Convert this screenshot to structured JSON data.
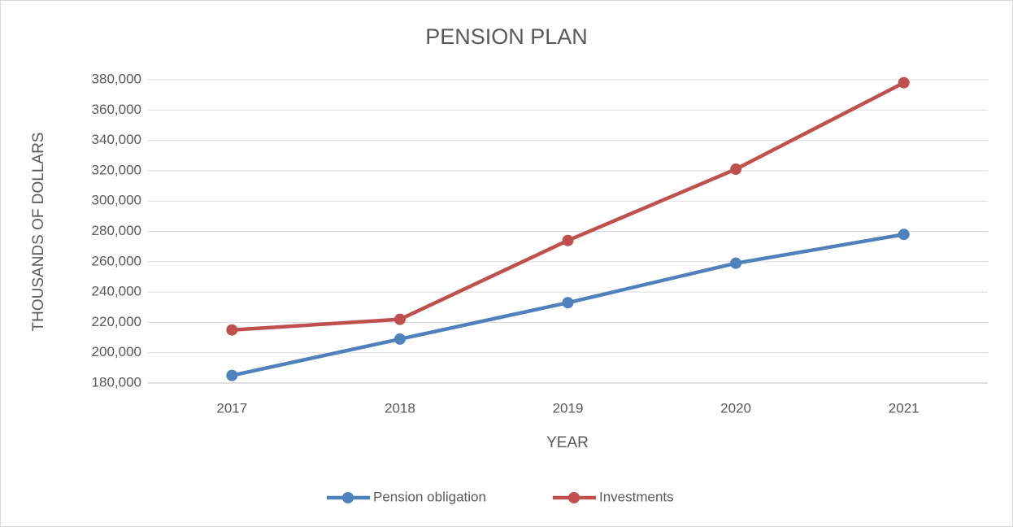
{
  "chart_data": {
    "type": "line",
    "title": "PENSION PLAN",
    "x_label": "YEAR",
    "y_label": "THOUSANDS OF DOLLARS",
    "categories": [
      "2017",
      "2018",
      "2019",
      "2020",
      "2021"
    ],
    "series": [
      {
        "name": "Pension obligation",
        "color": "#4f81bd",
        "values": [
          185000,
          209000,
          233000,
          259000,
          278000
        ]
      },
      {
        "name": "Investments",
        "color": "#c0504d",
        "values": [
          215000,
          222000,
          274000,
          321000,
          378000
        ]
      }
    ],
    "ylim": [
      180000,
      380000
    ],
    "yticks": [
      {
        "value": 180000,
        "label": "180,000"
      },
      {
        "value": 200000,
        "label": "200,000"
      },
      {
        "value": 220000,
        "label": "220,000"
      },
      {
        "value": 240000,
        "label": "240,000"
      },
      {
        "value": 260000,
        "label": "260,000"
      },
      {
        "value": 280000,
        "label": "280,000"
      },
      {
        "value": 300000,
        "label": "300,000"
      },
      {
        "value": 320000,
        "label": "320,000"
      },
      {
        "value": 340000,
        "label": "340,000"
      },
      {
        "value": 360000,
        "label": "360,000"
      },
      {
        "value": 380000,
        "label": "380,000"
      }
    ],
    "grid": true,
    "legend": "bottom"
  }
}
